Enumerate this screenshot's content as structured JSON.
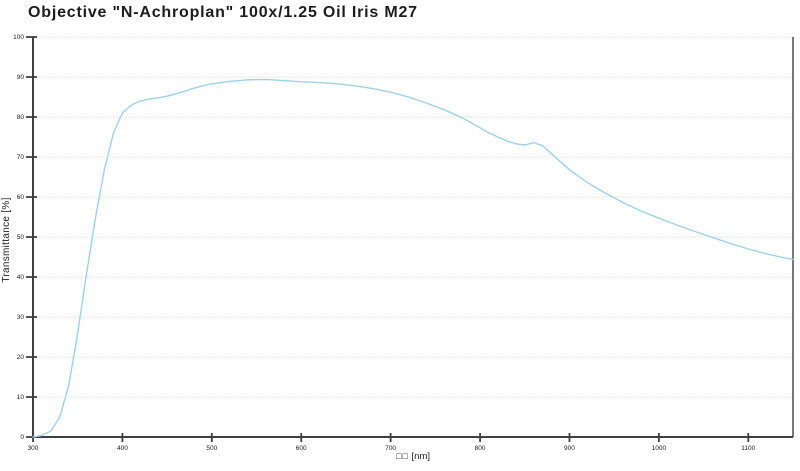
{
  "window": {
    "title": "Objective \"N-Achroplan\" 100x/1.25 Oil Iris M27"
  },
  "colors": {
    "curve": "#9fd1ee",
    "grid": "#cccccc",
    "axis": "#3f3f3f",
    "text": "#1d1d1d",
    "background": "#ffffff"
  },
  "chart_data": {
    "type": "line",
    "title": "Objective \"N-Achroplan\" 100x/1.25 Oil Iris M27",
    "xlabel": "[nm]",
    "xlabel_missing_glyphs": "□□",
    "ylabel": "Transmittance [%]",
    "xlim": [
      300,
      1150
    ],
    "ylim": [
      0,
      100
    ],
    "x_ticks": [
      300,
      400,
      500,
      600,
      700,
      800,
      900,
      1000,
      1100
    ],
    "y_ticks": [
      0,
      10,
      20,
      30,
      40,
      50,
      60,
      70,
      80,
      90,
      100
    ],
    "grid": "horizontal-dotted",
    "legend": "none",
    "series": [
      {
        "name": "Transmittance",
        "color": "#9fd1ee",
        "x": [
          300,
          310,
          320,
          330,
          340,
          350,
          360,
          370,
          380,
          390,
          400,
          410,
          420,
          430,
          440,
          450,
          460,
          470,
          480,
          490,
          500,
          520,
          540,
          560,
          580,
          600,
          620,
          640,
          660,
          680,
          700,
          720,
          740,
          760,
          780,
          800,
          810,
          820,
          830,
          840,
          850,
          860,
          870,
          880,
          890,
          900,
          920,
          940,
          960,
          980,
          1000,
          1020,
          1040,
          1060,
          1080,
          1100,
          1120,
          1140,
          1150
        ],
        "y": [
          0,
          0.4,
          1.5,
          5,
          13,
          26,
          41,
          55,
          67,
          76,
          81,
          83,
          84,
          84.5,
          84.8,
          85.2,
          85.8,
          86.5,
          87.2,
          87.8,
          88.3,
          88.9,
          89.3,
          89.4,
          89.1,
          88.8,
          88.6,
          88.3,
          87.8,
          87.1,
          86.2,
          85,
          83.5,
          81.8,
          79.8,
          77.3,
          76,
          75,
          74,
          73.3,
          73,
          73.6,
          72.8,
          70.8,
          68.8,
          66.8,
          63.6,
          61,
          58.6,
          56.5,
          54.7,
          53,
          51.4,
          49.9,
          48.4,
          47,
          45.8,
          44.8,
          44.4
        ]
      }
    ]
  }
}
